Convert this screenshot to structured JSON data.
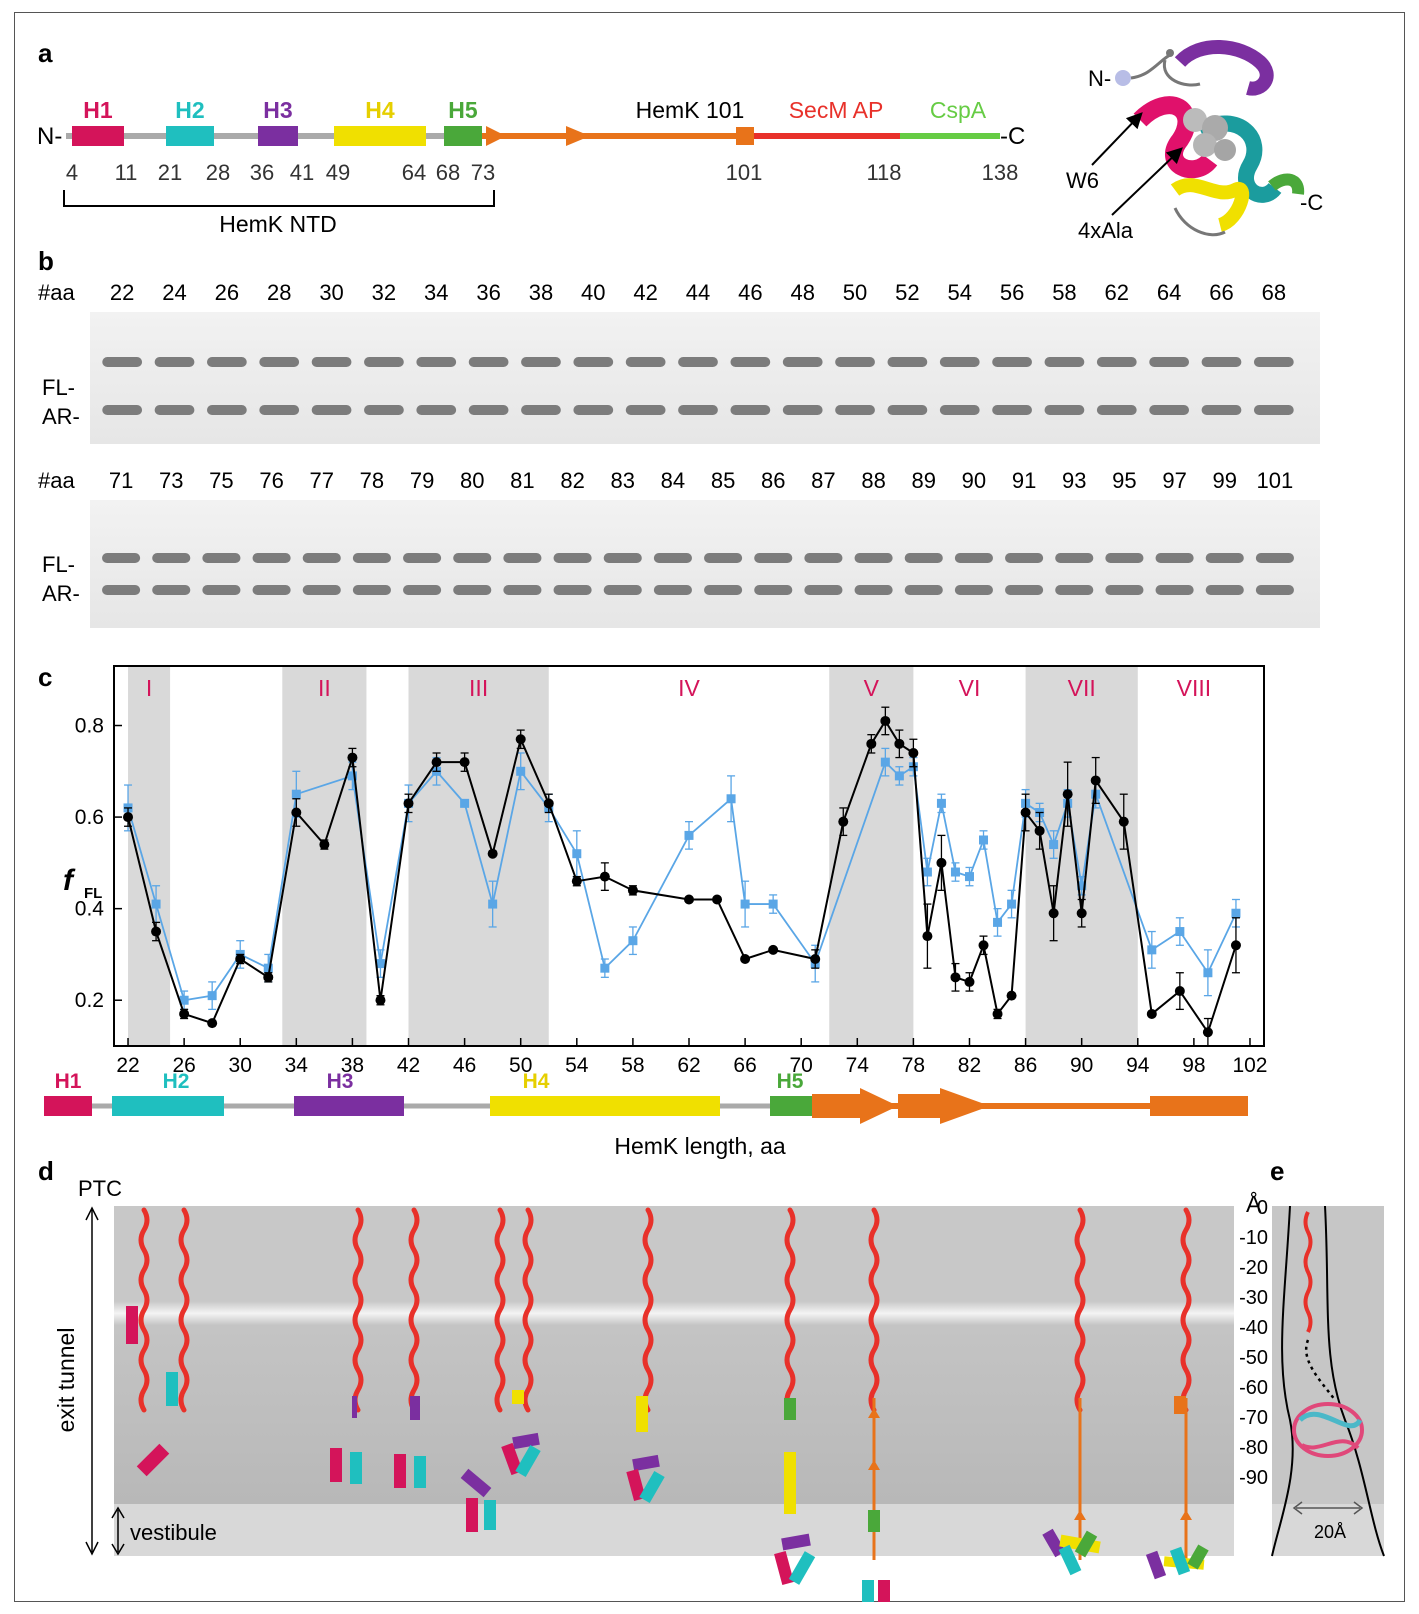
{
  "panels": {
    "a": "a",
    "b": "b",
    "c": "c",
    "d": "d",
    "e": "e"
  },
  "colors": {
    "h1": "#d4145a",
    "h2": "#1fbfbf",
    "h3": "#7b2fa0",
    "h4": "#f0e000",
    "h5": "#4aa83a",
    "orange": "#e8731a",
    "secm": "#e8312a",
    "cspa": "#66cc44",
    "black_series": "#000000",
    "blue_series": "#5aa6e6",
    "region_label": "#d4145a"
  },
  "panel_a": {
    "helices": [
      {
        "label": "H1",
        "color": "#d4145a"
      },
      {
        "label": "H2",
        "color": "#1fbfbf"
      },
      {
        "label": "H3",
        "color": "#7b2fa0"
      },
      {
        "label": "H4",
        "color": "#f0e000"
      },
      {
        "label": "H5",
        "color": "#4aa83a"
      }
    ],
    "n_term": "N-",
    "c_term": "-C",
    "hemk101": "HemK 101",
    "secm": "SecM AP",
    "cspa": "CspA",
    "positions": [
      "4",
      "11",
      "21",
      "28",
      "36",
      "41",
      "49",
      "64",
      "68",
      "73",
      "101",
      "118",
      "138"
    ],
    "bracket_label": "HemK NTD",
    "structure_labels": {
      "n": "N-",
      "c": "-C",
      "w6": "W6",
      "ala": "4xAla"
    }
  },
  "panel_b": {
    "aa_label": "#aa",
    "row1": [
      "22",
      "24",
      "26",
      "28",
      "30",
      "32",
      "34",
      "36",
      "38",
      "40",
      "42",
      "44",
      "46",
      "48",
      "50",
      "52",
      "54",
      "56",
      "58",
      "62",
      "64",
      "66",
      "68"
    ],
    "row2": [
      "71",
      "73",
      "75",
      "76",
      "77",
      "78",
      "79",
      "80",
      "81",
      "82",
      "83",
      "84",
      "85",
      "86",
      "87",
      "88",
      "89",
      "90",
      "91",
      "93",
      "95",
      "97",
      "99",
      "101"
    ],
    "fl_label": "FL-",
    "ar_label": "AR-"
  },
  "chart_data": {
    "type": "line",
    "xlabel": "HemK length, aa",
    "ylabel": "f",
    "ylabel_sub": "FL",
    "xlim": [
      21,
      103
    ],
    "ylim": [
      0.1,
      0.93
    ],
    "xticks": [
      22,
      26,
      30,
      34,
      38,
      42,
      46,
      50,
      54,
      58,
      62,
      66,
      70,
      74,
      78,
      82,
      86,
      90,
      94,
      98,
      102
    ],
    "yticks": [
      0.2,
      0.4,
      0.6,
      0.8
    ],
    "grid": false,
    "regions": [
      {
        "label": "I",
        "x0": 22,
        "x1": 25,
        "shaded": true
      },
      {
        "label": "II",
        "x0": 33,
        "x1": 39,
        "shaded": true
      },
      {
        "label": "III",
        "x0": 42,
        "x1": 52,
        "shaded": true
      },
      {
        "label": "IV",
        "x0": 52,
        "x1": 72,
        "shaded": false
      },
      {
        "label": "V",
        "x0": 72,
        "x1": 78,
        "shaded": true
      },
      {
        "label": "VI",
        "x0": 78,
        "x1": 86,
        "shaded": false
      },
      {
        "label": "VII",
        "x0": 86,
        "x1": 94,
        "shaded": true
      },
      {
        "label": "VIII",
        "x0": 94,
        "x1": 102,
        "shaded": false
      }
    ],
    "series": [
      {
        "color": "#000000",
        "x": [
          22,
          24,
          26,
          28,
          30,
          32,
          34,
          36,
          38,
          40,
          42,
          44,
          46,
          48,
          50,
          52,
          54,
          56,
          58,
          62,
          64,
          66,
          68,
          71,
          73,
          75,
          76,
          77,
          78,
          79,
          80,
          81,
          82,
          83,
          84,
          85,
          86,
          87,
          88,
          89,
          90,
          91,
          93,
          95,
          97,
          99,
          101
        ],
        "y": [
          0.6,
          0.35,
          0.17,
          0.15,
          0.29,
          0.25,
          0.61,
          0.54,
          0.73,
          0.2,
          0.63,
          0.72,
          0.72,
          0.52,
          0.77,
          0.63,
          0.46,
          0.47,
          0.44,
          0.42,
          0.42,
          0.29,
          0.31,
          0.29,
          0.59,
          0.76,
          0.81,
          0.76,
          0.74,
          0.34,
          0.5,
          0.25,
          0.24,
          0.32,
          0.17,
          0.21,
          0.61,
          0.57,
          0.39,
          0.65,
          0.39,
          0.68,
          0.59,
          0.17,
          0.22,
          0.13,
          0.32
        ],
        "err": [
          0.02,
          0.02,
          0.01,
          0.0,
          0.01,
          0.01,
          0.03,
          0.01,
          0.02,
          0.01,
          0.02,
          0.02,
          0.02,
          0.0,
          0.02,
          0.02,
          0.01,
          0.03,
          0.01,
          0.0,
          0.0,
          0.0,
          0.0,
          0.02,
          0.03,
          0.02,
          0.03,
          0.03,
          0.03,
          0.07,
          0.06,
          0.03,
          0.02,
          0.02,
          0.01,
          0.0,
          0.04,
          0.04,
          0.06,
          0.07,
          0.03,
          0.05,
          0.06,
          0.0,
          0.04,
          0.03,
          0.06
        ]
      },
      {
        "color": "#5aa6e6",
        "x": [
          22,
          24,
          26,
          28,
          30,
          32,
          34,
          38,
          40,
          42,
          44,
          46,
          48,
          50,
          52,
          54,
          56,
          58,
          62,
          65,
          66,
          68,
          71,
          76,
          77,
          78,
          79,
          80,
          81,
          82,
          83,
          84,
          85,
          86,
          87,
          88,
          89,
          90,
          91,
          95,
          97,
          99,
          101
        ],
        "y": [
          0.62,
          0.41,
          0.2,
          0.21,
          0.3,
          0.27,
          0.65,
          0.69,
          0.28,
          0.63,
          0.7,
          0.63,
          0.41,
          0.7,
          0.62,
          0.52,
          0.27,
          0.33,
          0.56,
          0.64,
          0.41,
          0.41,
          0.28,
          0.72,
          0.69,
          0.71,
          0.48,
          0.63,
          0.48,
          0.47,
          0.55,
          0.37,
          0.41,
          0.63,
          0.61,
          0.54,
          0.63,
          0.45,
          0.65,
          0.31,
          0.35,
          0.26,
          0.39
        ],
        "err": [
          0.05,
          0.04,
          0.02,
          0.03,
          0.03,
          0.03,
          0.05,
          0.03,
          0.03,
          0.04,
          0.03,
          0.0,
          0.05,
          0.04,
          0.03,
          0.05,
          0.02,
          0.03,
          0.03,
          0.05,
          0.05,
          0.02,
          0.04,
          0.03,
          0.02,
          0.02,
          0.03,
          0.02,
          0.02,
          0.02,
          0.02,
          0.03,
          0.03,
          0.03,
          0.02,
          0.03,
          0.03,
          0.02,
          0.03,
          0.04,
          0.03,
          0.05,
          0.03
        ]
      }
    ]
  },
  "panel_c_bar": {
    "helices": [
      "H1",
      "H2",
      "H3",
      "H4",
      "H5"
    ]
  },
  "panel_d": {
    "ptc": "PTC",
    "exit_tunnel": "exit tunnel",
    "vestibule": "vestibule"
  },
  "panel_e": {
    "unit": "Å",
    "scale": [
      "0",
      "-10",
      "-20",
      "-30",
      "-40",
      "-50",
      "-60",
      "-70",
      "-80",
      "-90"
    ],
    "width_label": "20Å"
  }
}
